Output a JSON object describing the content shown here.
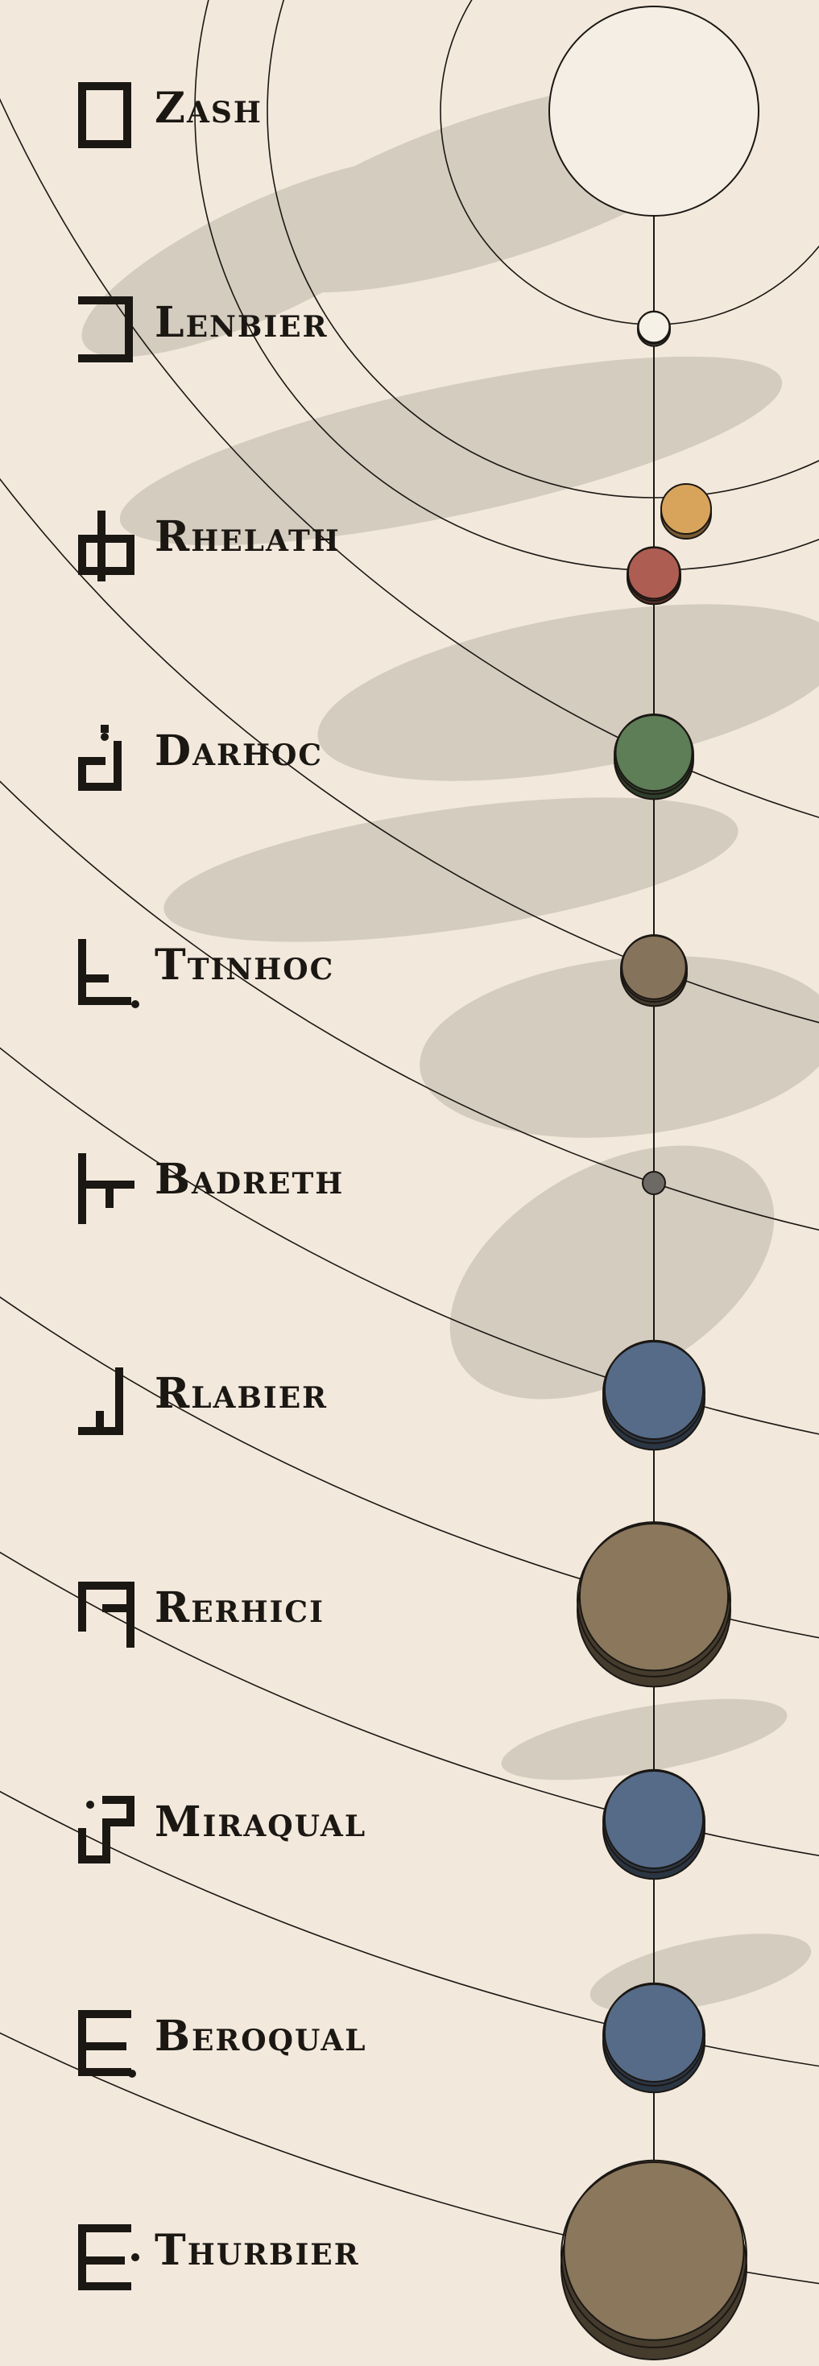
{
  "colors": {
    "background": "#f2e9dc",
    "ink": "#1b1713",
    "haze": "#6b655c"
  },
  "sun": {
    "name": "Zash",
    "glyph": "zash-glyph-icon",
    "fill": "#f4eee4"
  },
  "planets": [
    {
      "name": "Lenbier",
      "glyph": "lenbier-glyph-icon",
      "color": "#f6f1e7"
    },
    {
      "name": "Rhelath",
      "glyph": "rhelath-glyph-icon",
      "color": "#ae5d52",
      "moon_color": "#d8a45c"
    },
    {
      "name": "Darhoc",
      "glyph": "darhoc-glyph-icon",
      "color": "#5d7e56"
    },
    {
      "name": "Ttinhoc",
      "glyph": "ttinhoc-glyph-icon",
      "color": "#86735b"
    },
    {
      "name": "Badreth",
      "glyph": "badreth-glyph-icon",
      "color": "#6d6a66"
    },
    {
      "name": "Rlabier",
      "glyph": "rlabier-glyph-icon",
      "color": "#556b88"
    },
    {
      "name": "Rerhici",
      "glyph": "rerhici-glyph-icon",
      "color": "#8a775c"
    },
    {
      "name": "Miraqual",
      "glyph": "miraqual-glyph-icon",
      "color": "#556b88"
    },
    {
      "name": "Beroqual",
      "glyph": "beroqual-glyph-icon",
      "color": "#556b88"
    },
    {
      "name": "Thurbier",
      "glyph": "thurbier-glyph-icon",
      "color": "#8a775c"
    }
  ]
}
